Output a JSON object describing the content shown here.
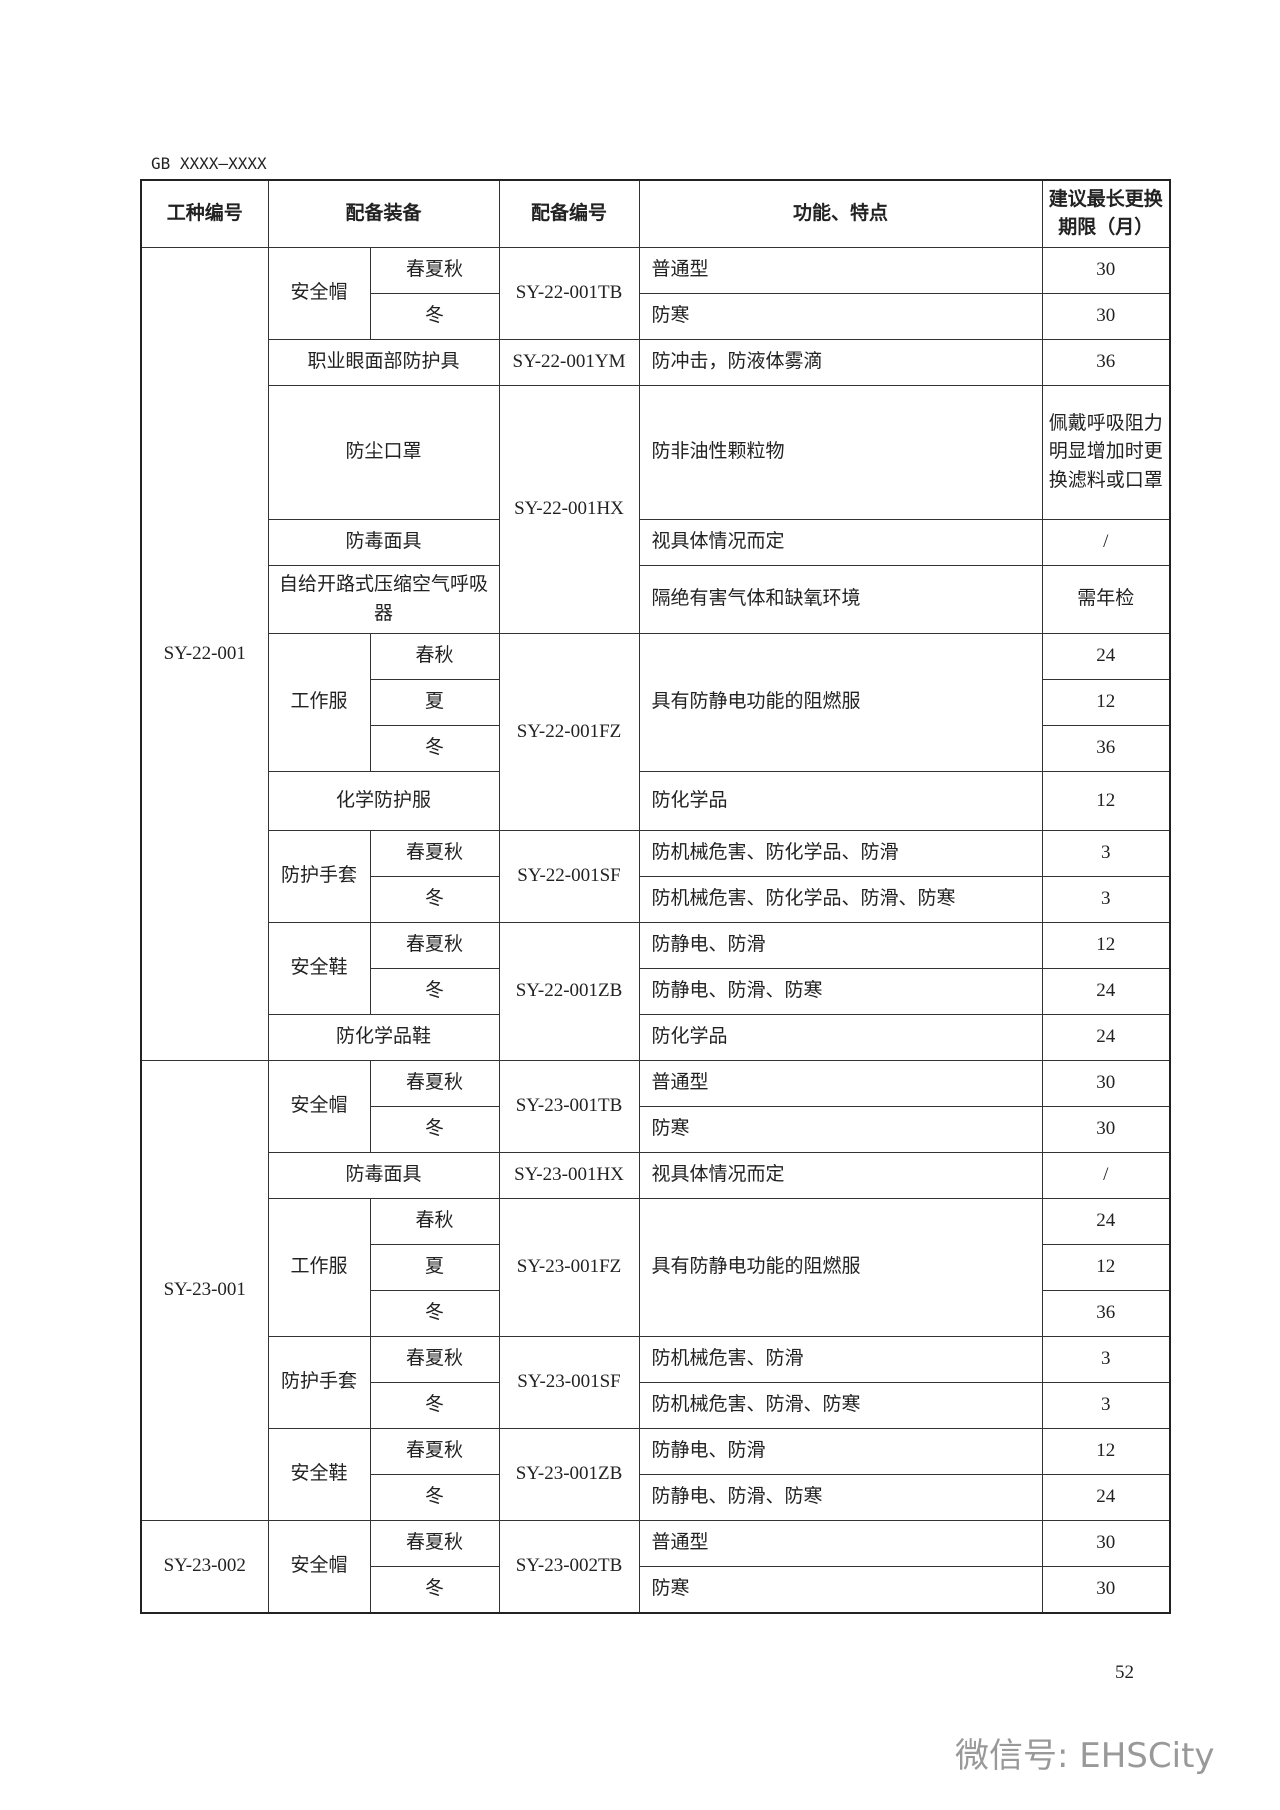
{
  "header": {
    "doc_code": "GB XXXX—XXXX"
  },
  "table": {
    "columns": [
      "工种编号",
      "配备装备",
      "配备编号",
      "功能、特点",
      "建议最长更换期限（月）"
    ],
    "rows": [
      [
        "SY-22-001",
        "安全帽",
        "春夏秋",
        "SY-22-001TB",
        "普通型",
        30
      ],
      [
        "冬",
        "防寒",
        30
      ],
      [
        "职业眼面部防护具",
        "SY-22-001YM",
        "防冲击，防液体雾滴",
        36
      ],
      [
        "防尘口罩",
        "SY-22-001HX",
        "防非油性颗粒物",
        "佩戴呼吸阻力明显增加时更换滤料或口罩"
      ],
      [
        "防毒面具",
        "视具体情况而定",
        "/"
      ],
      [
        "自给开路式压缩空气呼吸器",
        "隔绝有害气体和缺氧环境",
        "需年检"
      ],
      [
        "工作服",
        "春秋",
        "SY-22-001FZ",
        "具有防静电功能的阻燃服",
        24
      ],
      [
        "夏",
        12
      ],
      [
        "冬",
        36
      ],
      [
        "化学防护服",
        "防化学品",
        12
      ],
      [
        "防护手套",
        "春夏秋",
        "SY-22-001SF",
        "防机械危害、防化学品、防滑",
        3
      ],
      [
        "冬",
        "防机械危害、防化学品、防滑、防寒",
        3
      ],
      [
        "安全鞋",
        "春夏秋",
        "SY-22-001ZB",
        "防静电、防滑",
        12
      ],
      [
        "冬",
        "防静电、防滑、防寒",
        24
      ],
      [
        "防化学品鞋",
        "防化学品",
        24
      ],
      [
        "SY-23-001",
        "安全帽",
        "春夏秋",
        "SY-23-001TB",
        "普通型",
        30
      ],
      [
        "冬",
        "防寒",
        30
      ],
      [
        "防毒面具",
        "SY-23-001HX",
        "视具体情况而定",
        "/"
      ],
      [
        "工作服",
        "春秋",
        "SY-23-001FZ",
        "具有防静电功能的阻燃服",
        24
      ],
      [
        "夏",
        12
      ],
      [
        "冬",
        36
      ],
      [
        "防护手套",
        "春夏秋",
        "SY-23-001SF",
        "防机械危害、防滑",
        3
      ],
      [
        "冬",
        "防机械危害、防滑、防寒",
        3
      ],
      [
        "安全鞋",
        "春夏秋",
        "SY-23-001ZB",
        "防静电、防滑",
        12
      ],
      [
        "冬",
        "防静电、防滑、防寒",
        24
      ],
      [
        "SY-23-002",
        "安全帽",
        "春夏秋",
        "SY-23-002TB",
        "普通型",
        30
      ],
      [
        "冬",
        "防寒",
        30
      ]
    ]
  },
  "footer": {
    "page_number": 52,
    "watermark": "微信号: EHSCity"
  }
}
